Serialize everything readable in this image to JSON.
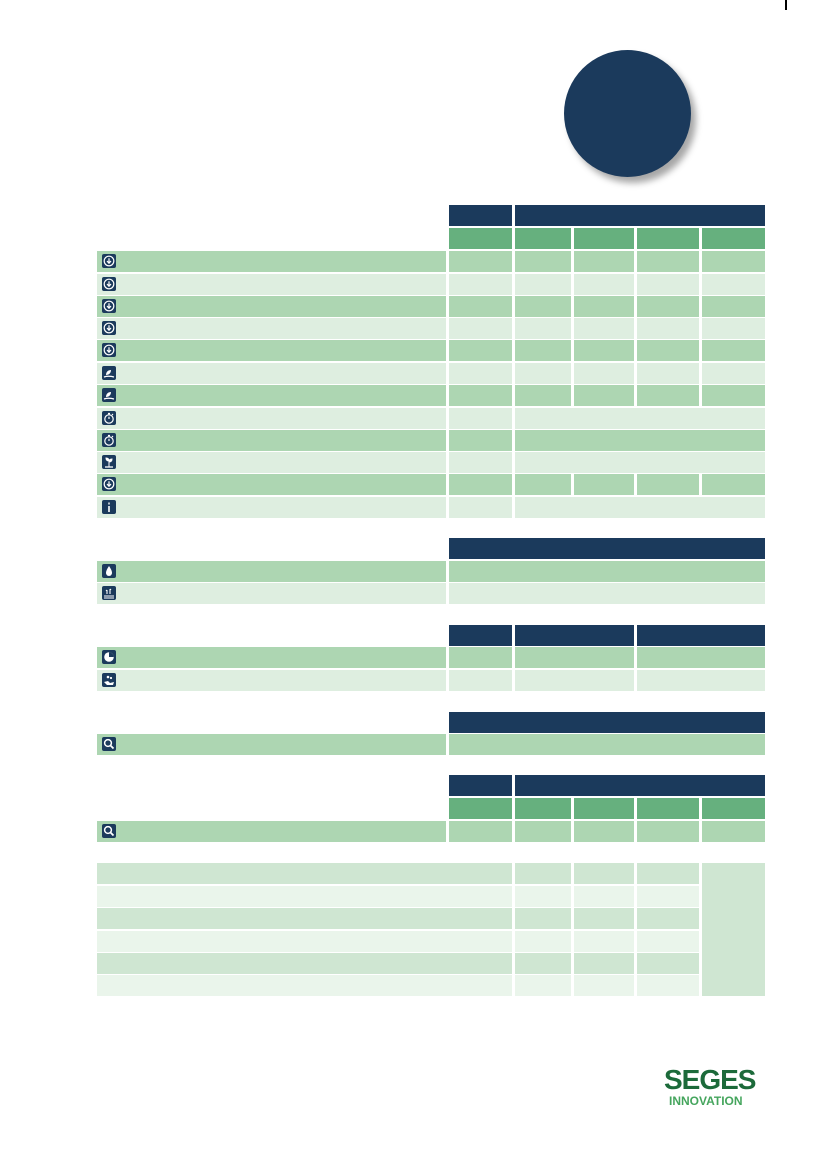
{
  "logo": {
    "name": "SEGES",
    "subtitle": "INNOVATION"
  },
  "colors": {
    "navy": "#1b3a5c",
    "green_header": "#66b07e",
    "row_medium": "#add6b2",
    "row_light": "#deeee0",
    "logo_green": "#1c6a3a"
  },
  "icons": {
    "section1": [
      "download-circle-icon",
      "download-circle-icon",
      "download-circle-icon",
      "download-circle-icon",
      "download-circle-icon",
      "plant-leaf-icon",
      "plant-leaf-icon",
      "stopwatch-icon",
      "stopwatch-icon",
      "sprout-hand-icon",
      "download-circle-icon",
      "torch-icon"
    ],
    "section2": [
      "water-drop-icon",
      "field-crop-icon"
    ],
    "section3": [
      "pie-chart-icon",
      "hand-seed-icon"
    ],
    "section4": [
      "magnifier-icon"
    ],
    "section5": [
      "magnifier-icon"
    ]
  }
}
